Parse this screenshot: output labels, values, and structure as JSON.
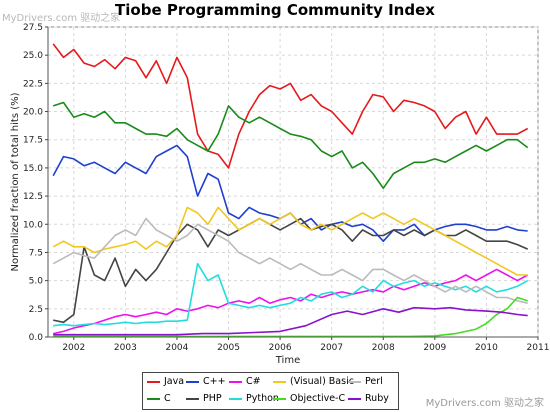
{
  "watermark_top": "MyDrivers.com 驱动之家",
  "watermark_bottom": "MyDrivers.com 驱动之家",
  "chart_data": {
    "type": "line",
    "title": "Tiobe Programming Community Index",
    "xlabel": "Time",
    "ylabel": "Normalized fraction of total hits (%)",
    "xlim": [
      2001.5,
      2011.0
    ],
    "ylim": [
      0,
      27.5
    ],
    "xticks": [
      "2002",
      "2003",
      "2004",
      "2005",
      "2006",
      "2007",
      "2008",
      "2009",
      "2010",
      "2011"
    ],
    "yticks": [
      "0.0",
      "2.5",
      "5.0",
      "7.5",
      "10.0",
      "12.5",
      "15.0",
      "17.5",
      "20.0",
      "22.5",
      "25.0",
      "27.5"
    ],
    "grid": true,
    "legend_position": "bottom",
    "series": [
      {
        "name": "Java",
        "color": "#e41a1c",
        "x": [
          2001.6,
          2001.8,
          2002.0,
          2002.2,
          2002.4,
          2002.6,
          2002.8,
          2003.0,
          2003.2,
          2003.4,
          2003.6,
          2003.8,
          2004.0,
          2004.2,
          2004.4,
          2004.6,
          2004.8,
          2005.0,
          2005.2,
          2005.4,
          2005.6,
          2005.8,
          2006.0,
          2006.2,
          2006.4,
          2006.6,
          2006.8,
          2007.0,
          2007.2,
          2007.4,
          2007.6,
          2007.8,
          2008.0,
          2008.2,
          2008.4,
          2008.6,
          2008.8,
          2009.0,
          2009.2,
          2009.4,
          2009.6,
          2009.8,
          2010.0,
          2010.2,
          2010.4,
          2010.6,
          2010.8
        ],
        "y": [
          26.0,
          24.8,
          25.5,
          24.3,
          24.0,
          24.6,
          23.8,
          24.8,
          24.5,
          23.0,
          24.5,
          22.5,
          24.8,
          23.0,
          18.0,
          16.5,
          16.2,
          15.0,
          18.0,
          20.0,
          21.5,
          22.3,
          22.0,
          22.5,
          21.0,
          21.5,
          20.5,
          20.0,
          19.0,
          18.0,
          20.0,
          21.5,
          21.3,
          20.0,
          21.0,
          20.8,
          20.5,
          20.0,
          18.5,
          19.5,
          20.0,
          18.0,
          19.5,
          18.0,
          18.0,
          18.0,
          18.5
        ]
      },
      {
        "name": "C",
        "color": "#1a8a1a",
        "x": [
          2001.6,
          2001.8,
          2002.0,
          2002.2,
          2002.4,
          2002.6,
          2002.8,
          2003.0,
          2003.2,
          2003.4,
          2003.6,
          2003.8,
          2004.0,
          2004.2,
          2004.4,
          2004.6,
          2004.8,
          2005.0,
          2005.2,
          2005.4,
          2005.6,
          2005.8,
          2006.0,
          2006.2,
          2006.4,
          2006.6,
          2006.8,
          2007.0,
          2007.2,
          2007.4,
          2007.6,
          2007.8,
          2008.0,
          2008.2,
          2008.4,
          2008.6,
          2008.8,
          2009.0,
          2009.2,
          2009.4,
          2009.6,
          2009.8,
          2010.0,
          2010.2,
          2010.4,
          2010.6,
          2010.8
        ],
        "y": [
          20.5,
          20.8,
          19.5,
          19.8,
          19.5,
          20.0,
          19.0,
          19.0,
          18.5,
          18.0,
          18.0,
          17.8,
          18.5,
          17.5,
          17.0,
          16.5,
          18.0,
          20.5,
          19.5,
          19.0,
          19.5,
          19.0,
          18.5,
          18.0,
          17.8,
          17.5,
          16.5,
          16.0,
          16.5,
          15.0,
          15.5,
          14.5,
          13.2,
          14.5,
          15.0,
          15.5,
          15.5,
          15.8,
          15.5,
          16.0,
          16.5,
          17.0,
          16.5,
          17.0,
          17.5,
          17.5,
          16.8
        ]
      },
      {
        "name": "C++",
        "color": "#1f3fcf",
        "x": [
          2001.6,
          2001.8,
          2002.0,
          2002.2,
          2002.4,
          2002.6,
          2002.8,
          2003.0,
          2003.2,
          2003.4,
          2003.6,
          2003.8,
          2004.0,
          2004.2,
          2004.4,
          2004.6,
          2004.8,
          2005.0,
          2005.2,
          2005.4,
          2005.6,
          2005.8,
          2006.0,
          2006.2,
          2006.4,
          2006.6,
          2006.8,
          2007.0,
          2007.2,
          2007.4,
          2007.6,
          2007.8,
          2008.0,
          2008.2,
          2008.4,
          2008.6,
          2008.8,
          2009.0,
          2009.2,
          2009.4,
          2009.6,
          2009.8,
          2010.0,
          2010.2,
          2010.4,
          2010.6,
          2010.8
        ],
        "y": [
          14.3,
          16.0,
          15.8,
          15.2,
          15.5,
          15.0,
          14.5,
          15.5,
          15.0,
          14.5,
          16.0,
          16.5,
          17.0,
          16.0,
          12.5,
          14.5,
          14.0,
          11.0,
          10.5,
          11.5,
          11.0,
          10.8,
          10.5,
          11.0,
          10.0,
          10.5,
          9.5,
          10.0,
          10.2,
          9.8,
          10.0,
          9.5,
          8.5,
          9.5,
          9.5,
          10.0,
          9.0,
          9.5,
          9.8,
          10.0,
          10.0,
          9.8,
          9.5,
          9.5,
          9.8,
          9.5,
          9.4
        ]
      },
      {
        "name": "PHP",
        "color": "#444444",
        "x": [
          2001.6,
          2001.8,
          2002.0,
          2002.2,
          2002.4,
          2002.6,
          2002.8,
          2003.0,
          2003.2,
          2003.4,
          2003.6,
          2003.8,
          2004.0,
          2004.2,
          2004.4,
          2004.6,
          2004.8,
          2005.0,
          2005.2,
          2005.4,
          2005.6,
          2005.8,
          2006.0,
          2006.2,
          2006.4,
          2006.6,
          2006.8,
          2007.0,
          2007.2,
          2007.4,
          2007.6,
          2007.8,
          2008.0,
          2008.2,
          2008.4,
          2008.6,
          2008.8,
          2009.0,
          2009.2,
          2009.4,
          2009.6,
          2009.8,
          2010.0,
          2010.2,
          2010.4,
          2010.6,
          2010.8
        ],
        "y": [
          1.5,
          1.3,
          2.0,
          8.0,
          5.5,
          5.0,
          7.0,
          4.5,
          6.0,
          5.0,
          6.0,
          7.5,
          9.0,
          10.0,
          9.5,
          8.0,
          9.5,
          9.0,
          9.5,
          10.0,
          10.5,
          10.0,
          9.5,
          10.0,
          10.5,
          9.5,
          9.8,
          10.0,
          9.5,
          8.5,
          9.5,
          9.0,
          9.0,
          9.5,
          9.0,
          9.5,
          9.0,
          9.5,
          9.0,
          9.0,
          9.5,
          9.0,
          8.5,
          8.5,
          8.5,
          8.2,
          7.8
        ]
      },
      {
        "name": "C#",
        "color": "#ee11ee",
        "x": [
          2001.6,
          2001.8,
          2002.0,
          2002.2,
          2002.4,
          2002.6,
          2002.8,
          2003.0,
          2003.2,
          2003.4,
          2003.6,
          2003.8,
          2004.0,
          2004.2,
          2004.4,
          2004.6,
          2004.8,
          2005.0,
          2005.2,
          2005.4,
          2005.6,
          2005.8,
          2006.0,
          2006.2,
          2006.4,
          2006.6,
          2006.8,
          2007.0,
          2007.2,
          2007.4,
          2007.6,
          2007.8,
          2008.0,
          2008.2,
          2008.4,
          2008.6,
          2008.8,
          2009.0,
          2009.2,
          2009.4,
          2009.6,
          2009.8,
          2010.0,
          2010.2,
          2010.4,
          2010.6,
          2010.8
        ],
        "y": [
          0.3,
          0.5,
          0.8,
          1.0,
          1.2,
          1.5,
          1.8,
          2.0,
          1.8,
          2.0,
          2.2,
          2.0,
          2.5,
          2.3,
          2.5,
          2.8,
          2.6,
          3.0,
          3.2,
          3.0,
          3.5,
          3.0,
          3.3,
          3.5,
          3.2,
          3.8,
          3.5,
          3.8,
          4.0,
          3.8,
          4.0,
          4.2,
          4.0,
          4.5,
          4.2,
          4.5,
          4.8,
          4.5,
          4.8,
          5.0,
          5.5,
          5.0,
          5.5,
          6.0,
          5.5,
          5.0,
          5.5
        ]
      },
      {
        "name": "Python",
        "color": "#22dddd",
        "x": [
          2001.6,
          2001.8,
          2002.0,
          2002.2,
          2002.4,
          2002.6,
          2002.8,
          2003.0,
          2003.2,
          2003.4,
          2003.6,
          2003.8,
          2004.0,
          2004.2,
          2004.4,
          2004.6,
          2004.8,
          2005.0,
          2005.2,
          2005.4,
          2005.6,
          2005.8,
          2006.0,
          2006.2,
          2006.4,
          2006.6,
          2006.8,
          2007.0,
          2007.2,
          2007.4,
          2007.6,
          2007.8,
          2008.0,
          2008.2,
          2008.4,
          2008.6,
          2008.8,
          2009.0,
          2009.2,
          2009.4,
          2009.6,
          2009.8,
          2010.0,
          2010.2,
          2010.4,
          2010.6,
          2010.8
        ],
        "y": [
          1.0,
          1.1,
          1.0,
          1.1,
          1.2,
          1.1,
          1.2,
          1.3,
          1.2,
          1.3,
          1.3,
          1.4,
          1.4,
          1.5,
          6.5,
          5.0,
          5.5,
          3.0,
          2.8,
          2.6,
          2.8,
          2.6,
          2.8,
          3.0,
          3.5,
          3.2,
          3.8,
          4.0,
          3.5,
          3.8,
          4.5,
          4.0,
          5.0,
          4.5,
          4.8,
          5.0,
          4.5,
          4.8,
          4.5,
          4.2,
          4.5,
          4.0,
          4.5,
          4.0,
          4.2,
          4.5,
          5.0
        ]
      },
      {
        "name": "(Visual) Basic",
        "color": "#f0c820",
        "x": [
          2001.6,
          2001.8,
          2002.0,
          2002.2,
          2002.4,
          2002.6,
          2002.8,
          2003.0,
          2003.2,
          2003.4,
          2003.6,
          2003.8,
          2004.0,
          2004.2,
          2004.4,
          2004.6,
          2004.8,
          2005.0,
          2005.2,
          2005.4,
          2005.6,
          2005.8,
          2006.0,
          2006.2,
          2006.4,
          2006.6,
          2006.8,
          2007.0,
          2007.2,
          2007.4,
          2007.6,
          2007.8,
          2008.0,
          2008.2,
          2008.4,
          2008.6,
          2008.8,
          2009.0,
          2009.2,
          2009.4,
          2009.6,
          2009.8,
          2010.0,
          2010.2,
          2010.4,
          2010.6,
          2010.8
        ],
        "y": [
          8.0,
          8.5,
          8.0,
          8.0,
          7.5,
          7.8,
          8.0,
          8.2,
          8.5,
          7.8,
          8.5,
          8.0,
          9.0,
          11.5,
          11.0,
          10.0,
          11.5,
          10.5,
          9.5,
          10.0,
          10.5,
          10.0,
          10.5,
          11.0,
          10.0,
          9.5,
          10.0,
          9.5,
          10.0,
          10.5,
          11.0,
          10.5,
          11.0,
          10.5,
          10.0,
          10.5,
          10.0,
          9.5,
          9.0,
          8.5,
          8.0,
          7.5,
          7.0,
          6.5,
          6.0,
          5.5,
          5.5
        ]
      },
      {
        "name": "Perl",
        "color": "#bbbbbb",
        "x": [
          2001.6,
          2001.8,
          2002.0,
          2002.2,
          2002.4,
          2002.6,
          2002.8,
          2003.0,
          2003.2,
          2003.4,
          2003.6,
          2003.8,
          2004.0,
          2004.2,
          2004.4,
          2004.6,
          2004.8,
          2005.0,
          2005.2,
          2005.4,
          2005.6,
          2005.8,
          2006.0,
          2006.2,
          2006.4,
          2006.6,
          2006.8,
          2007.0,
          2007.2,
          2007.4,
          2007.6,
          2007.8,
          2008.0,
          2008.2,
          2008.4,
          2008.6,
          2008.8,
          2009.0,
          2009.2,
          2009.4,
          2009.6,
          2009.8,
          2010.0,
          2010.2,
          2010.4,
          2010.6,
          2010.8
        ],
        "y": [
          6.5,
          7.0,
          7.5,
          7.2,
          7.0,
          8.0,
          9.0,
          9.5,
          9.0,
          10.5,
          9.5,
          9.0,
          8.5,
          9.0,
          10.0,
          9.5,
          9.0,
          8.5,
          7.5,
          7.0,
          6.5,
          7.0,
          6.5,
          6.0,
          6.5,
          6.0,
          5.5,
          5.5,
          6.0,
          5.5,
          5.0,
          6.0,
          6.0,
          5.5,
          5.0,
          5.5,
          5.0,
          4.5,
          4.0,
          4.5,
          4.0,
          4.5,
          4.0,
          3.5,
          3.5,
          3.2,
          3.0
        ]
      },
      {
        "name": "Objective-C",
        "color": "#44dd22",
        "x": [
          2001.6,
          2002.0,
          2002.5,
          2003.0,
          2003.5,
          2004.0,
          2004.5,
          2005.0,
          2005.5,
          2006.0,
          2006.5,
          2007.0,
          2007.5,
          2008.0,
          2008.5,
          2009.0,
          2009.2,
          2009.4,
          2009.6,
          2009.8,
          2010.0,
          2010.2,
          2010.4,
          2010.6,
          2010.8
        ],
        "y": [
          0.05,
          0.05,
          0.05,
          0.05,
          0.05,
          0.05,
          0.05,
          0.05,
          0.05,
          0.05,
          0.05,
          0.05,
          0.05,
          0.05,
          0.05,
          0.1,
          0.2,
          0.3,
          0.5,
          0.7,
          1.2,
          2.0,
          2.5,
          3.5,
          3.2
        ]
      },
      {
        "name": "Ruby",
        "color": "#8811cc",
        "x": [
          2001.6,
          2002.0,
          2002.5,
          2003.0,
          2003.5,
          2004.0,
          2004.5,
          2005.0,
          2005.5,
          2006.0,
          2006.5,
          2007.0,
          2007.3,
          2007.6,
          2008.0,
          2008.3,
          2008.6,
          2009.0,
          2009.3,
          2009.6,
          2010.0,
          2010.3,
          2010.6,
          2010.8
        ],
        "y": [
          0.2,
          0.2,
          0.2,
          0.2,
          0.2,
          0.2,
          0.3,
          0.3,
          0.4,
          0.5,
          1.0,
          2.0,
          2.3,
          2.0,
          2.5,
          2.2,
          2.6,
          2.5,
          2.6,
          2.4,
          2.3,
          2.2,
          2.0,
          1.9
        ]
      }
    ]
  }
}
